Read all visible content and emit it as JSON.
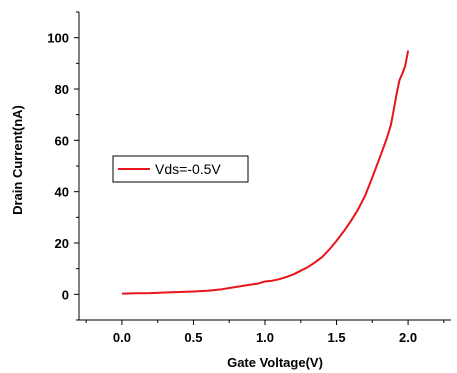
{
  "chart_data": {
    "type": "line",
    "title": "",
    "xlabel": "Gate Voltage(V)",
    "ylabel": "Drain Current(nA)",
    "xlim": [
      -0.3,
      2.3
    ],
    "ylim": [
      -10,
      110
    ],
    "x_ticks": [
      0.0,
      0.5,
      1.0,
      1.5,
      2.0
    ],
    "x_tick_labels": [
      "0.0",
      "0.5",
      "1.0",
      "1.5",
      "2.0"
    ],
    "y_ticks": [
      0,
      20,
      40,
      60,
      80,
      100
    ],
    "y_tick_labels": [
      "0",
      "20",
      "40",
      "60",
      "80",
      "100"
    ],
    "grid": false,
    "legend_position": "middle-left",
    "series": [
      {
        "name": "Vds=-0.5V",
        "color": "#e8141b",
        "x": [
          0.0,
          0.1,
          0.2,
          0.3,
          0.4,
          0.5,
          0.6,
          0.7,
          0.8,
          0.9,
          0.95,
          1.0,
          1.05,
          1.1,
          1.15,
          1.2,
          1.25,
          1.3,
          1.35,
          1.4,
          1.45,
          1.5,
          1.55,
          1.6,
          1.65,
          1.7,
          1.75,
          1.8,
          1.85,
          1.88,
          1.9,
          1.92,
          1.94,
          1.96,
          1.98,
          2.0
        ],
        "y": [
          0.3,
          0.4,
          0.5,
          0.7,
          0.9,
          1.1,
          1.4,
          2.0,
          2.9,
          3.8,
          4.2,
          5.0,
          5.3,
          5.9,
          6.8,
          7.8,
          9.2,
          10.6,
          12.5,
          14.6,
          17.5,
          20.8,
          24.5,
          28.5,
          33.0,
          38.5,
          45.5,
          53.0,
          60.5,
          66.0,
          72.0,
          78.0,
          83.5,
          86.0,
          89.0,
          95.0
        ]
      }
    ]
  }
}
